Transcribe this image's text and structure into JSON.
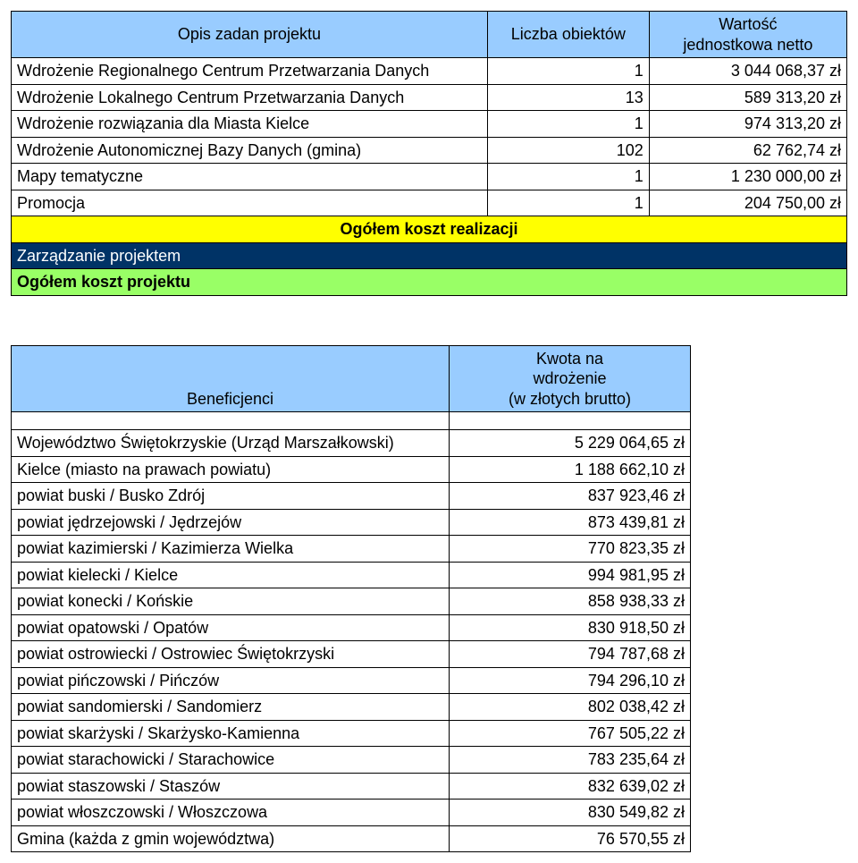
{
  "colors": {
    "header_bg": "#99ccff",
    "yellow_bg": "#ffff00",
    "navy_bg": "#003366",
    "green_bg": "#99ff66",
    "white": "#ffffff",
    "black": "#000000"
  },
  "table1": {
    "headers": {
      "col1": "Opis zadan projektu",
      "col2": "Liczba obiektów",
      "col3_line1": "Wartość",
      "col3_line2": "jednostkowa netto"
    },
    "rows": [
      {
        "opis": "Wdrożenie Regionalnego Centrum Przetwarzania Danych",
        "liczba": "1",
        "wartosc": "3 044 068,37 zł"
      },
      {
        "opis": "Wdrożenie Lokalnego Centrum Przetwarzania Danych",
        "liczba": "13",
        "wartosc": "589 313,20 zł"
      },
      {
        "opis": "Wdrożenie rozwiązania dla Miasta Kielce",
        "liczba": "1",
        "wartosc": "974 313,20 zł"
      },
      {
        "opis": "Wdrożenie Autonomicznej Bazy Danych (gmina)",
        "liczba": "102",
        "wartosc": "62 762,74 zł"
      },
      {
        "opis": "Mapy tematyczne",
        "liczba": "1",
        "wartosc": "1 230 000,00 zł"
      },
      {
        "opis": "Promocja",
        "liczba": "1",
        "wartosc": "204 750,00 zł"
      }
    ],
    "yellow_label": "Ogółem koszt realizacji",
    "navy_label": "Zarządzanie projektem",
    "green_label": "Ogółem koszt projektu"
  },
  "table2": {
    "headers": {
      "col1": "Beneficjenci",
      "col2_line1": "Kwota na",
      "col2_line2": "wdrożenie",
      "col2_line3": "(w złotych brutto)"
    },
    "rows": [
      {
        "b": "Województwo Świętokrzyskie (Urząd Marszałkowski)",
        "k": "5 229 064,65 zł"
      },
      {
        "b": "Kielce (miasto na prawach powiatu)",
        "k": "1 188 662,10 zł"
      },
      {
        "b": "powiat buski / Busko Zdrój",
        "k": "837 923,46 zł"
      },
      {
        "b": "powiat jędrzejowski / Jędrzejów",
        "k": "873 439,81 zł"
      },
      {
        "b": "powiat kazimierski / Kazimierza Wielka",
        "k": "770 823,35 zł"
      },
      {
        "b": "powiat kielecki / Kielce",
        "k": "994 981,95 zł"
      },
      {
        "b": "powiat konecki / Końskie",
        "k": "858 938,33 zł"
      },
      {
        "b": "powiat opatowski / Opatów",
        "k": "830 918,50 zł"
      },
      {
        "b": "powiat ostrowiecki / Ostrowiec Świętokrzyski",
        "k": "794 787,68 zł"
      },
      {
        "b": "powiat pińczowski / Pińczów",
        "k": "794 296,10 zł"
      },
      {
        "b": "powiat sandomierski / Sandomierz",
        "k": "802 038,42 zł"
      },
      {
        "b": "powiat skarżyski / Skarżysko-Kamienna",
        "k": "767 505,22 zł"
      },
      {
        "b": "powiat starachowicki / Starachowice",
        "k": "783 235,64 zł"
      },
      {
        "b": "powiat staszowski / Staszów",
        "k": "832 639,02 zł"
      },
      {
        "b": "powiat włoszczowski / Włoszczowa",
        "k": "830 549,82 zł"
      },
      {
        "b": "Gmina (każda z gmin województwa)",
        "k": "76 570,55 zł"
      }
    ]
  }
}
